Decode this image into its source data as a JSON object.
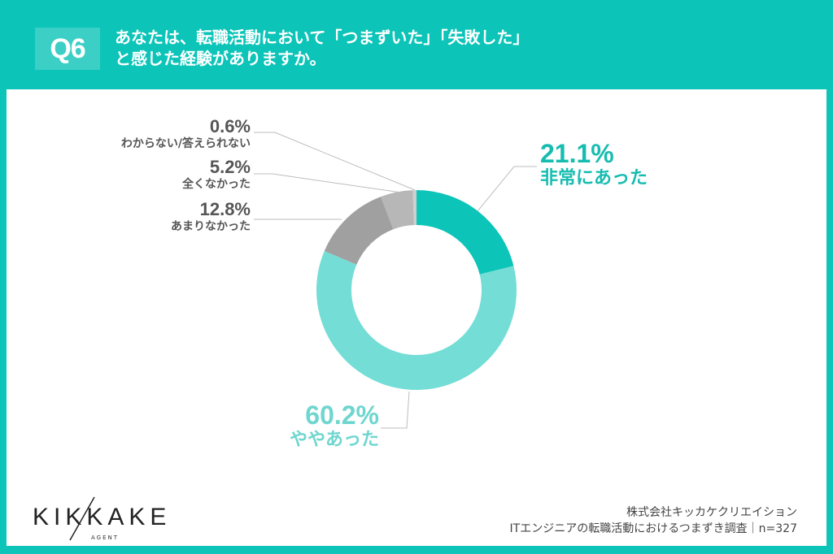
{
  "header": {
    "badge": "Q6",
    "title_line1": "あなたは、転職活動において「つまずいた」「失敗した」",
    "title_line2": "と感じた経験がありますか。"
  },
  "colors": {
    "accent": "#0cc4b8",
    "light_teal": "#73ddd6",
    "gray_dark": "#a0a0a0",
    "gray_mid": "#b7b7b7",
    "gray_light": "#cfcfcf"
  },
  "labels": {
    "very": {
      "pct": "21.1%",
      "cat": "非常にあった"
    },
    "some": {
      "pct": "60.2%",
      "cat": "ややあった"
    },
    "little": {
      "pct": "12.8%",
      "cat": "あまりなかった"
    },
    "none": {
      "pct": "5.2%",
      "cat": "全くなかった"
    },
    "unknown": {
      "pct": "0.6%",
      "cat": "わからない/答えられない"
    }
  },
  "chart_data": {
    "type": "pie",
    "variant": "donut",
    "title": "あなたは、転職活動において「つまずいた」「失敗した」と感じた経験がありますか。",
    "categories": [
      "非常にあった",
      "ややあった",
      "あまりなかった",
      "全くなかった",
      "わからない/答えられない"
    ],
    "values": [
      21.1,
      60.2,
      12.8,
      5.2,
      0.6
    ],
    "colors": [
      "#0cc4b8",
      "#73ddd6",
      "#a0a0a0",
      "#b7b7b7",
      "#cfcfcf"
    ],
    "start_angle": "12 o'clock, clockwise",
    "sample_size": "n=327"
  },
  "logo": {
    "main": "KIKKAKE",
    "sub": "AGENT"
  },
  "footer": {
    "company": "株式会社キッカケクリエイション",
    "survey": "ITエンジニアの転職活動におけるつまずき調査｜n=327"
  }
}
